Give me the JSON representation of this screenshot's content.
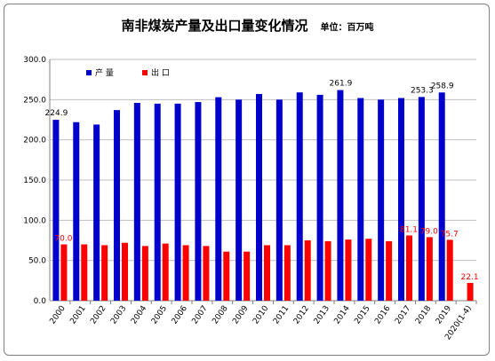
{
  "header": {
    "title": "南非煤炭产量及出口量变化情况",
    "unit": "单位：百万吨"
  },
  "colors": {
    "production": "#0000cc",
    "export": "#ff0000"
  },
  "chart_data": {
    "type": "bar",
    "title": "南非煤炭产量及出口量变化情况",
    "unit_label": "单位：百万吨",
    "categories": [
      "2000",
      "2001",
      "2002",
      "2003",
      "2004",
      "2005",
      "2006",
      "2007",
      "2008",
      "2009",
      "2010",
      "2011",
      "2012",
      "2013",
      "2014",
      "2015",
      "2016",
      "2017",
      "2018",
      "2019",
      "2020(1-4)"
    ],
    "series": [
      {
        "name": "产 量",
        "values": [
          224.9,
          222,
          219,
          237,
          246,
          245,
          245,
          247,
          253,
          250,
          257,
          250,
          259,
          256,
          261.9,
          252,
          250,
          252,
          253.3,
          258.9,
          null
        ]
      },
      {
        "name": "出 口",
        "values": [
          70.0,
          70,
          69,
          72,
          68,
          71,
          69,
          68,
          61,
          61,
          69,
          69,
          75,
          74,
          76,
          77,
          74,
          81.1,
          79.0,
          75.7,
          22.1
        ]
      }
    ],
    "data_labels": {
      "production": {
        "2000": "224.9",
        "2014": "261.9",
        "2018": "253.3",
        "2019": "258.9"
      },
      "export": {
        "2000": "70.0",
        "2017": "81.1",
        "2018": "79.0",
        "2019": "75.7",
        "2020(1-4)": "22.1"
      }
    },
    "ylim": [
      0,
      300
    ],
    "yticks": [
      "0.0",
      "50.0",
      "100.0",
      "150.0",
      "200.0",
      "250.0",
      "300.0"
    ],
    "legend_position": "top-left",
    "grid": true
  }
}
